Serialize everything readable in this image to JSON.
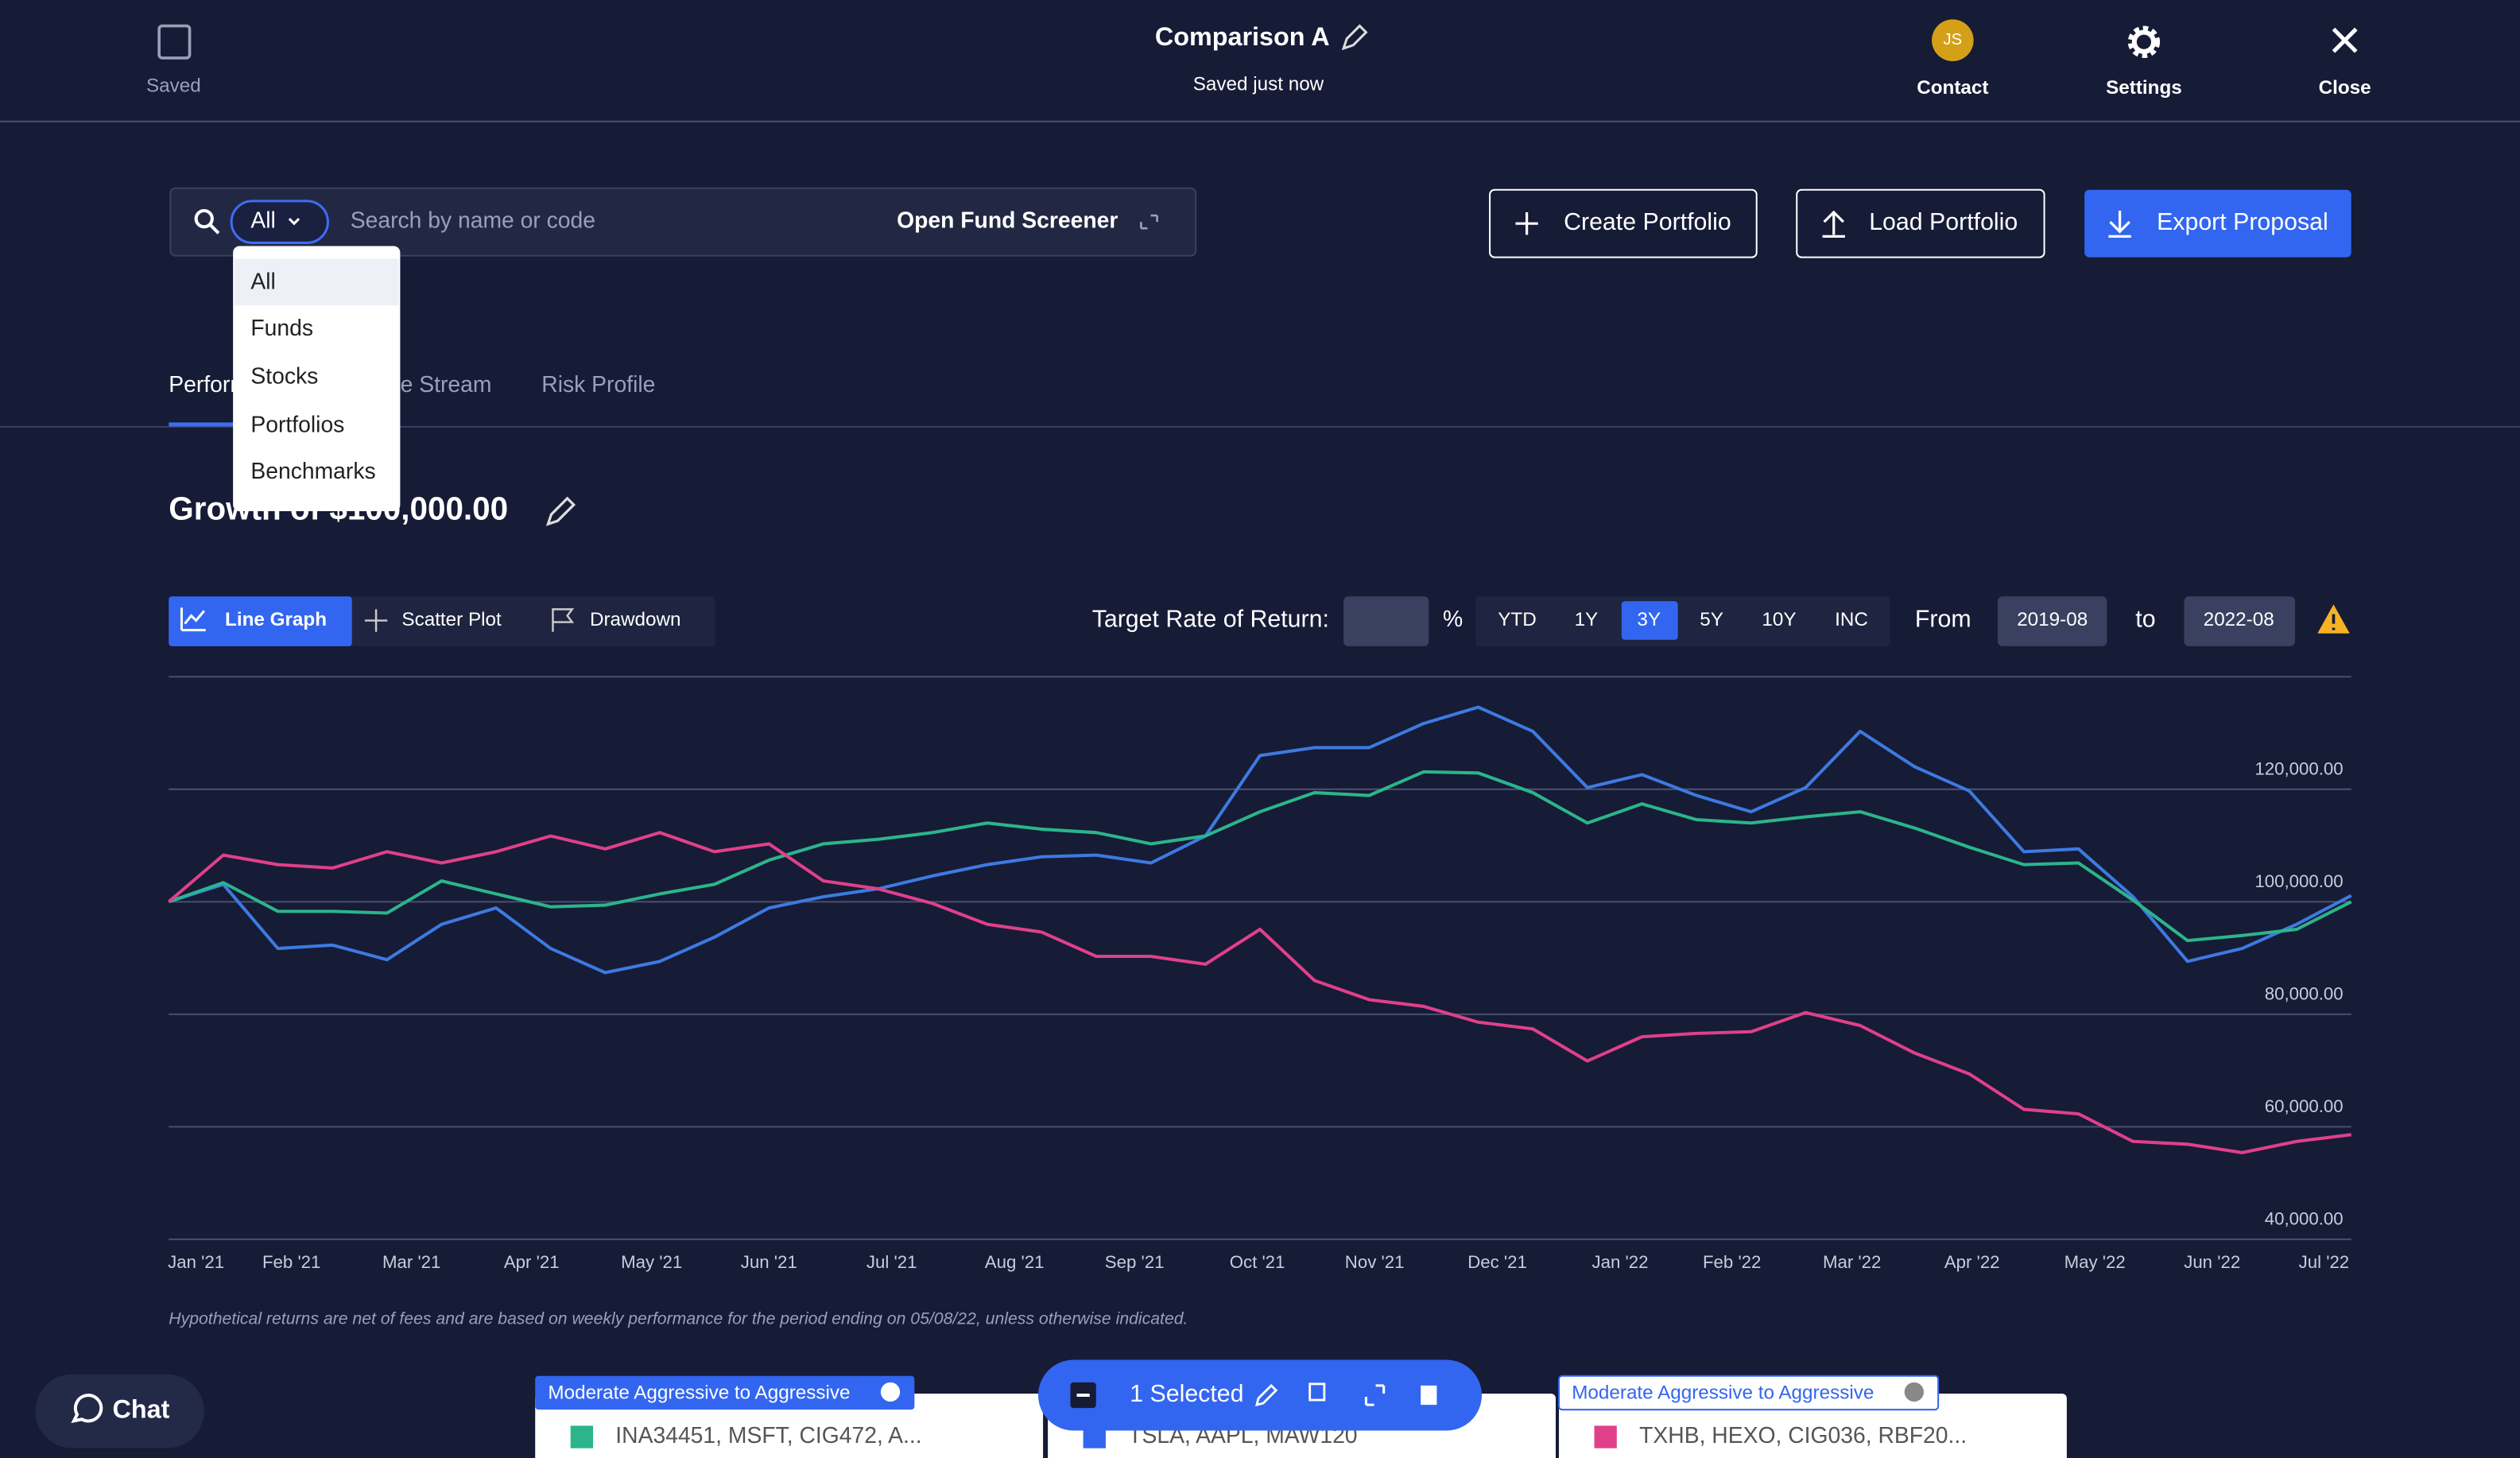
{
  "header": {
    "saved": "Saved",
    "title": "Comparison A",
    "status": "Saved just now",
    "initials": "JS",
    "contact": "Contact",
    "settings": "Settings",
    "close": "Close"
  },
  "search": {
    "filter": "All",
    "placeholder": "Search by name or code",
    "screener": "Open Fund Screener",
    "options": [
      "All",
      "Funds",
      "Stocks",
      "Portfolios",
      "Benchmarks"
    ]
  },
  "actions": [
    "Create Portfolio",
    "Load Portfolio",
    "Export Proposal"
  ],
  "tabs": [
    "Performance",
    "Income Stream",
    "Risk Profile"
  ],
  "section_title": "Growth of $100,000.00",
  "controls": {
    "graph_types": [
      "Line Graph",
      "Scatter Plot",
      "Drawdown"
    ],
    "target_label": "Target Rate of Return:",
    "percent": "%",
    "periods": [
      "YTD",
      "1Y",
      "3Y",
      "5Y",
      "10Y",
      "INC"
    ],
    "from": "From",
    "from_date": "2019-08",
    "to": "to",
    "to_date": "2022-08"
  },
  "chart_data": {
    "type": "line",
    "x": [
      0,
      2,
      4,
      6,
      8,
      10,
      12,
      14,
      16,
      18,
      20,
      22,
      24,
      26,
      28,
      30,
      32,
      34,
      36,
      38,
      40,
      42,
      44,
      46,
      48,
      50,
      52,
      54,
      56,
      58,
      60,
      62,
      64,
      66,
      68,
      70,
      72,
      74,
      76,
      78,
      80
    ],
    "xlim": [
      0,
      80
    ],
    "xticks": [
      {
        "value": 1.0,
        "label": "Jan '21"
      },
      {
        "value": 4.5,
        "label": "Feb '21"
      },
      {
        "value": 8.9,
        "label": "Mar '21"
      },
      {
        "value": 13.3,
        "label": "Apr '21"
      },
      {
        "value": 17.7,
        "label": "May '21"
      },
      {
        "value": 22.0,
        "label": "Jun '21"
      },
      {
        "value": 26.5,
        "label": "Jul '21"
      },
      {
        "value": 31.0,
        "label": "Aug '21"
      },
      {
        "value": 35.4,
        "label": "Sep '21"
      },
      {
        "value": 39.9,
        "label": "Oct '21"
      },
      {
        "value": 44.2,
        "label": "Nov '21"
      },
      {
        "value": 48.7,
        "label": "Dec '21"
      },
      {
        "value": 53.2,
        "label": "Jan '22"
      },
      {
        "value": 57.3,
        "label": "Feb '22"
      },
      {
        "value": 61.7,
        "label": "Mar '22"
      },
      {
        "value": 66.1,
        "label": "Apr '22"
      },
      {
        "value": 70.6,
        "label": "May '22"
      },
      {
        "value": 74.9,
        "label": "Jun '22"
      },
      {
        "value": 79.0,
        "label": "Jul '22"
      }
    ],
    "ylim": [
      40000,
      140000
    ],
    "yticks": [
      {
        "value": 40000,
        "label": "40,000.00"
      },
      {
        "value": 60000,
        "label": "60,000.00"
      },
      {
        "value": 80000,
        "label": "80,000.00"
      },
      {
        "value": 100000,
        "label": "100,000.00"
      },
      {
        "value": 120000,
        "label": "120,000.00"
      }
    ],
    "grid": true,
    "series": [
      {
        "color": "#3d7ae0",
        "values": [
          100000,
          103100,
          91700,
          92300,
          89700,
          96000,
          98900,
          91700,
          87400,
          89400,
          93700,
          98900,
          100900,
          102300,
          104600,
          106600,
          108000,
          108300,
          106900,
          111700,
          126000,
          127400,
          127400,
          131700,
          134600,
          130300,
          120300,
          122600,
          118900,
          116000,
          120300,
          130300,
          124000,
          119700,
          108900,
          109400,
          100900,
          89400,
          91700,
          96000,
          101100
        ]
      },
      {
        "color": "#2bb58a",
        "values": [
          100000,
          103400,
          98300,
          98300,
          98000,
          103700,
          101400,
          99100,
          99400,
          101400,
          103100,
          107400,
          110300,
          111100,
          112300,
          114000,
          112900,
          112300,
          110300,
          111700,
          116000,
          119400,
          118900,
          123100,
          122900,
          119400,
          114000,
          117400,
          114600,
          114000,
          115100,
          116000,
          113100,
          109700,
          106600,
          106900,
          100300,
          93100,
          94000,
          95100,
          100000
        ]
      },
      {
        "color": "#e0408a",
        "values": [
          100000,
          108300,
          106600,
          106000,
          108900,
          106900,
          108900,
          111700,
          109400,
          112300,
          108900,
          110300,
          103700,
          102300,
          99700,
          96000,
          94600,
          90300,
          90300,
          88900,
          95100,
          86000,
          82600,
          81400,
          78600,
          77400,
          71700,
          76000,
          76600,
          76900,
          80300,
          78000,
          73100,
          69400,
          63100,
          62300,
          57400,
          56900,
          55400,
          57400,
          58600
        ]
      }
    ],
    "footnote": "Hypothetical returns are net of fees and are based on weekly performance for the period ending on 05/08/22, unless otherwise indicated."
  },
  "chat": "Chat",
  "selection": "1 Selected",
  "cards": [
    {
      "tag": "Moderate Aggressive to Aggressive",
      "holdings": "INA34451, MSFT, CIG472, A..."
    },
    {
      "holdings": "TSLA, AAPL, MAW120"
    },
    {
      "tag": "Moderate Aggressive to Aggressive",
      "holdings": "TXHB, HEXO, CIG036, RBF20..."
    }
  ]
}
